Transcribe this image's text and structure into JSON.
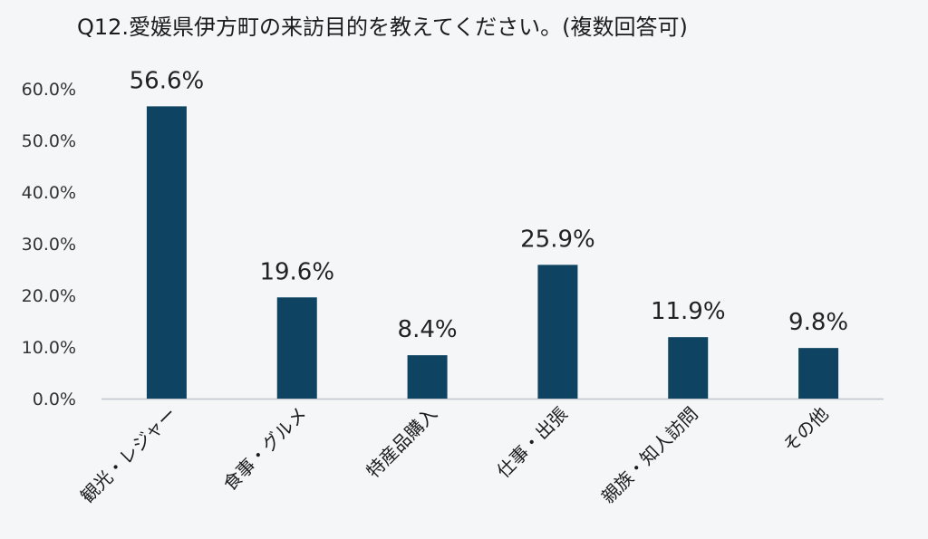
{
  "chart_data": {
    "type": "bar",
    "title": "Q12.愛媛県伊方町の来訪目的を教えてください。(複数回答可)",
    "categories": [
      "観光・レジャー",
      "食事・グルメ",
      "特産品購入",
      "仕事・出張",
      "親族・知人訪問",
      "その他"
    ],
    "values": [
      56.6,
      19.6,
      8.4,
      25.9,
      11.9,
      9.8
    ],
    "value_labels": [
      "56.6%",
      "19.6%",
      "8.4%",
      "25.9%",
      "11.9%",
      "9.8%"
    ],
    "ylim": [
      0,
      60
    ],
    "yticks": [
      0,
      10,
      20,
      30,
      40,
      50,
      60
    ],
    "ytick_labels": [
      "0.0%",
      "10.0%",
      "20.0%",
      "30.0%",
      "40.0%",
      "50.0%",
      "60.0%"
    ],
    "xlabel": "",
    "ylabel": "",
    "grid": false,
    "bar_color": "#0e4461"
  }
}
